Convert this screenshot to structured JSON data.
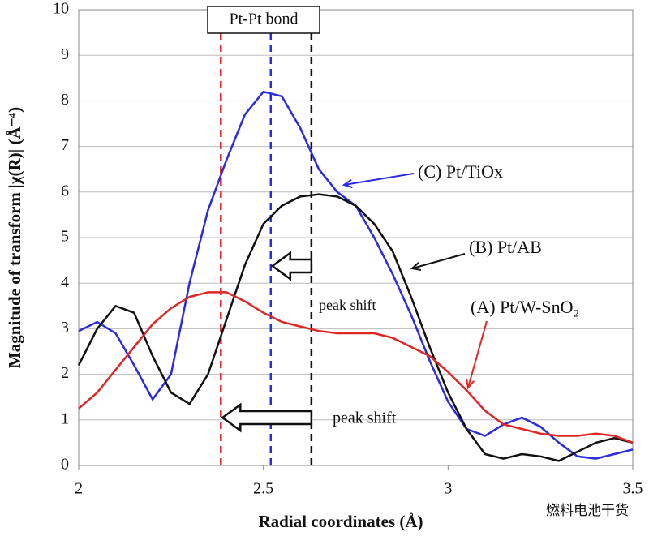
{
  "chart_data": {
    "type": "line",
    "x_label": "Radial coordinates (Å)",
    "y_label": "Magnitude of transform |χ(R)| (Å⁻⁴)",
    "x": [
      2.0,
      2.05,
      2.1,
      2.15,
      2.2,
      2.25,
      2.3,
      2.35,
      2.4,
      2.45,
      2.5,
      2.55,
      2.6,
      2.65,
      2.7,
      2.75,
      2.8,
      2.85,
      2.9,
      2.95,
      3.0,
      3.05,
      3.1,
      3.15,
      3.2,
      3.25,
      3.3,
      3.35,
      3.4,
      3.45,
      3.5
    ],
    "series": [
      {
        "name": "(C) Pt/TiOx",
        "color": "#2b2be0",
        "values": [
          2.95,
          3.15,
          2.9,
          2.2,
          1.45,
          2.0,
          4.0,
          5.6,
          6.7,
          7.7,
          8.2,
          8.1,
          7.4,
          6.5,
          6.0,
          5.7,
          5.0,
          4.2,
          3.3,
          2.3,
          1.4,
          0.8,
          0.65,
          0.9,
          1.05,
          0.85,
          0.5,
          0.2,
          0.15,
          0.25,
          0.35
        ]
      },
      {
        "name": "(B) Pt/AB",
        "color": "#111111",
        "values": [
          2.2,
          3.0,
          3.5,
          3.35,
          2.4,
          1.6,
          1.35,
          2.0,
          3.2,
          4.4,
          5.3,
          5.7,
          5.9,
          5.95,
          5.9,
          5.7,
          5.3,
          4.7,
          3.7,
          2.6,
          1.6,
          0.8,
          0.25,
          0.15,
          0.25,
          0.2,
          0.1,
          0.3,
          0.5,
          0.6,
          0.5
        ]
      },
      {
        "name": "(A) Pt/W-SnO₂",
        "color": "#e02525",
        "values": [
          1.25,
          1.6,
          2.1,
          2.6,
          3.1,
          3.45,
          3.7,
          3.8,
          3.8,
          3.6,
          3.35,
          3.15,
          3.05,
          2.95,
          2.9,
          2.9,
          2.9,
          2.8,
          2.6,
          2.4,
          2.05,
          1.65,
          1.2,
          0.9,
          0.8,
          0.7,
          0.65,
          0.65,
          0.7,
          0.65,
          0.5
        ]
      }
    ],
    "reference_lines": [
      {
        "x": 2.385,
        "color": "#e02525"
      },
      {
        "x": 2.52,
        "color": "#2b2be0"
      },
      {
        "x": 2.63,
        "color": "#111111"
      }
    ],
    "bond_label": "Pt-Pt bond",
    "shift_labels": [
      "peak shift",
      "peak shift"
    ],
    "watermark": "燃料电池干货",
    "xlim": [
      2,
      3.5
    ],
    "xticks": [
      2,
      2.5,
      3,
      3.5
    ],
    "ylim": [
      0,
      10
    ],
    "yticks": [
      0,
      1,
      2,
      3,
      4,
      5,
      6,
      7,
      8,
      9,
      10
    ],
    "grid": true
  }
}
